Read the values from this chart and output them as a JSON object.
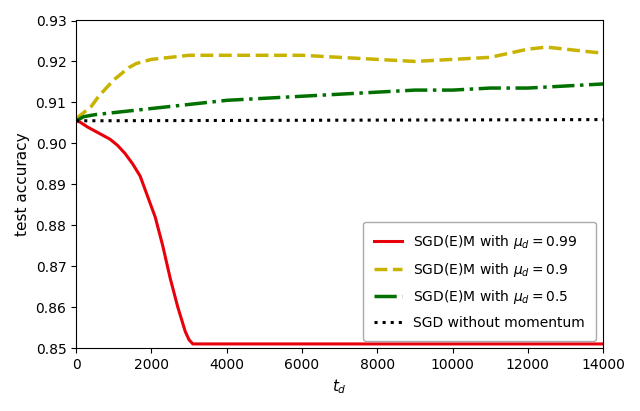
{
  "title": "",
  "xlabel": "$t_d$",
  "ylabel": "test accuracy",
  "xlim": [
    0,
    14000
  ],
  "ylim": [
    0.85,
    0.93
  ],
  "yticks": [
    0.85,
    0.86,
    0.87,
    0.88,
    0.89,
    0.9,
    0.91,
    0.92,
    0.93
  ],
  "xticks": [
    0,
    2000,
    4000,
    6000,
    8000,
    10000,
    12000,
    14000
  ],
  "series": [
    {
      "label": "SGD(E)M with $\\mu_d = 0.99$",
      "color": "#e8000b",
      "linestyle": "solid",
      "linewidth": 2.2,
      "x": [
        0,
        100,
        300,
        500,
        700,
        900,
        1100,
        1300,
        1500,
        1700,
        1900,
        2100,
        2300,
        2500,
        2700,
        2900,
        3000,
        3100,
        3200,
        4000,
        5000,
        6000,
        7000,
        8000,
        9000,
        10000,
        11000,
        12000,
        13000,
        14000
      ],
      "y": [
        0.9055,
        0.9052,
        0.904,
        0.903,
        0.902,
        0.901,
        0.8995,
        0.8975,
        0.895,
        0.892,
        0.887,
        0.882,
        0.875,
        0.867,
        0.86,
        0.854,
        0.852,
        0.851,
        0.851,
        0.851,
        0.851,
        0.851,
        0.851,
        0.851,
        0.851,
        0.851,
        0.851,
        0.851,
        0.851,
        0.851
      ]
    },
    {
      "label": "SGD(E)M with $\\mu_d = 0.9$",
      "color": "#c8b400",
      "linestyle": "dashed",
      "linewidth": 2.5,
      "x": [
        0,
        200,
        400,
        600,
        800,
        1000,
        1200,
        1400,
        1600,
        1800,
        2000,
        2500,
        3000,
        3500,
        4000,
        5000,
        6000,
        7000,
        8000,
        9000,
        10000,
        11000,
        12000,
        12500,
        13000,
        14000
      ],
      "y": [
        0.906,
        0.9075,
        0.909,
        0.9115,
        0.9135,
        0.9155,
        0.917,
        0.9185,
        0.9195,
        0.92,
        0.9205,
        0.921,
        0.9215,
        0.9215,
        0.9215,
        0.9215,
        0.9215,
        0.921,
        0.9205,
        0.92,
        0.9205,
        0.921,
        0.923,
        0.9235,
        0.923,
        0.922
      ]
    },
    {
      "label": "SGD(E)M with $\\mu_d = 0.5$",
      "color": "#007000",
      "linestyle": "dashdot",
      "linewidth": 2.5,
      "x": [
        0,
        200,
        500,
        1000,
        1500,
        2000,
        2500,
        3000,
        4000,
        5000,
        6000,
        7000,
        8000,
        9000,
        10000,
        11000,
        12000,
        13000,
        14000
      ],
      "y": [
        0.9055,
        0.9065,
        0.907,
        0.9075,
        0.908,
        0.9085,
        0.909,
        0.9095,
        0.9105,
        0.911,
        0.9115,
        0.912,
        0.9125,
        0.913,
        0.913,
        0.9135,
        0.9135,
        0.914,
        0.9145
      ]
    },
    {
      "label": "SGD without momentum",
      "color": "#000000",
      "linestyle": "dotted",
      "linewidth": 2.2,
      "x": [
        0,
        14000
      ],
      "y": [
        0.9055,
        0.9058
      ]
    }
  ],
  "legend_loc": "lower right",
  "fontsize": 11
}
